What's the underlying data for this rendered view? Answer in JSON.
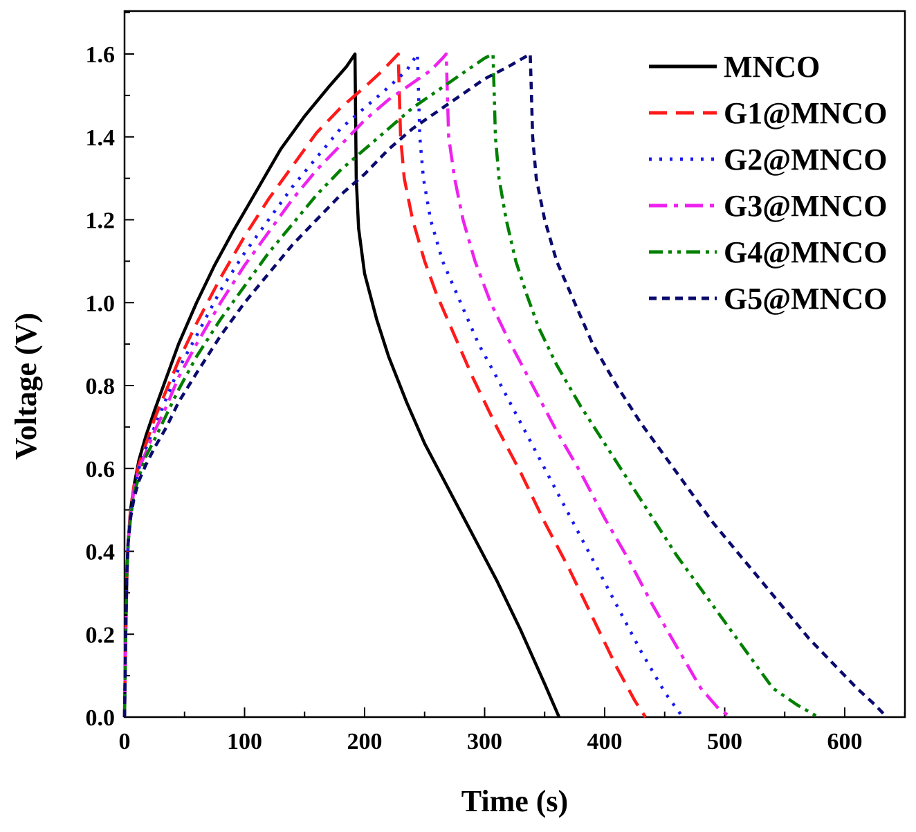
{
  "chart_data": {
    "type": "line",
    "title": "",
    "xlabel": "Time (s)",
    "ylabel": "Voltage (V)",
    "xlim": [
      0,
      650
    ],
    "ylim": [
      0,
      1.7
    ],
    "xticks": [
      0,
      100,
      200,
      300,
      400,
      500,
      600
    ],
    "xtick_labels": [
      "0",
      "100",
      "200",
      "300",
      "400",
      "500",
      "600"
    ],
    "yticks": [
      0.0,
      0.2,
      0.4,
      0.6,
      0.8,
      1.0,
      1.2,
      1.4,
      1.6
    ],
    "ytick_labels": [
      "0.0",
      "0.2",
      "0.4",
      "0.6",
      "0.8",
      "1.0",
      "1.2",
      "1.4",
      "1.6"
    ],
    "grid": false,
    "legend_position": "top-right",
    "series": [
      {
        "name": "MNCO",
        "color": "#000000",
        "style": "solid",
        "x": [
          0,
          1,
          2,
          3,
          5,
          8,
          12,
          18,
          25,
          35,
          45,
          60,
          75,
          90,
          110,
          130,
          150,
          170,
          185,
          192,
          192.5,
          193,
          195,
          200,
          210,
          220,
          235,
          250,
          270,
          290,
          310,
          330,
          350,
          362
        ],
        "y": [
          0,
          0.2,
          0.35,
          0.42,
          0.5,
          0.56,
          0.62,
          0.68,
          0.74,
          0.82,
          0.9,
          1.0,
          1.09,
          1.17,
          1.27,
          1.37,
          1.45,
          1.52,
          1.57,
          1.6,
          1.45,
          1.3,
          1.18,
          1.07,
          0.96,
          0.87,
          0.76,
          0.66,
          0.55,
          0.44,
          0.33,
          0.21,
          0.08,
          0
        ]
      },
      {
        "name": "G1@MNCO",
        "color": "#ff1a1a",
        "style": "dash",
        "x": [
          0,
          1,
          2,
          3,
          5,
          8,
          12,
          18,
          25,
          35,
          45,
          60,
          80,
          100,
          120,
          140,
          160,
          180,
          200,
          215,
          228,
          229,
          230,
          233,
          240,
          250,
          260,
          275,
          290,
          310,
          330,
          350,
          370,
          390,
          410,
          425,
          434
        ],
        "y": [
          0,
          0.2,
          0.35,
          0.42,
          0.5,
          0.56,
          0.61,
          0.66,
          0.72,
          0.79,
          0.86,
          0.95,
          1.06,
          1.16,
          1.25,
          1.33,
          1.41,
          1.47,
          1.52,
          1.56,
          1.6,
          1.5,
          1.4,
          1.3,
          1.2,
          1.1,
          1.02,
          0.92,
          0.82,
          0.7,
          0.59,
          0.47,
          0.36,
          0.24,
          0.12,
          0.04,
          0
        ]
      },
      {
        "name": "G2@MNCO",
        "color": "#1a1aee",
        "style": "dot",
        "x": [
          0,
          1,
          2,
          3,
          5,
          8,
          12,
          18,
          25,
          35,
          45,
          60,
          80,
          100,
          120,
          140,
          160,
          180,
          200,
          220,
          235,
          244,
          245,
          246,
          249,
          255,
          265,
          280,
          295,
          310,
          330,
          350,
          370,
          390,
          410,
          430,
          450,
          465
        ],
        "y": [
          0,
          0.2,
          0.35,
          0.42,
          0.49,
          0.55,
          0.6,
          0.65,
          0.7,
          0.77,
          0.84,
          0.92,
          1.03,
          1.12,
          1.2,
          1.28,
          1.35,
          1.42,
          1.47,
          1.52,
          1.56,
          1.6,
          1.5,
          1.4,
          1.3,
          1.2,
          1.1,
          1.0,
          0.9,
          0.82,
          0.71,
          0.6,
          0.49,
          0.38,
          0.27,
          0.16,
          0.06,
          0
        ]
      },
      {
        "name": "G3@MNCO",
        "color": "#ee22ee",
        "style": "dashdot",
        "x": [
          0,
          1,
          2,
          3,
          5,
          8,
          12,
          18,
          25,
          35,
          45,
          60,
          80,
          100,
          120,
          140,
          160,
          180,
          200,
          220,
          240,
          255,
          265,
          268,
          269,
          270,
          275,
          282,
          292,
          305,
          320,
          340,
          360,
          380,
          400,
          420,
          440,
          460,
          480,
          495,
          505
        ],
        "y": [
          0,
          0.2,
          0.35,
          0.42,
          0.49,
          0.55,
          0.6,
          0.64,
          0.69,
          0.75,
          0.82,
          0.9,
          1.0,
          1.09,
          1.17,
          1.25,
          1.32,
          1.38,
          1.44,
          1.49,
          1.53,
          1.56,
          1.59,
          1.6,
          1.5,
          1.4,
          1.3,
          1.2,
          1.1,
          1.0,
          0.91,
          0.8,
          0.69,
          0.59,
          0.48,
          0.38,
          0.27,
          0.17,
          0.07,
          0.02,
          0
        ]
      },
      {
        "name": "G4@MNCO",
        "color": "#008000",
        "style": "dashdotdot",
        "x": [
          0,
          1,
          2,
          3,
          5,
          8,
          12,
          18,
          25,
          35,
          45,
          60,
          80,
          100,
          120,
          140,
          160,
          180,
          200,
          220,
          240,
          260,
          280,
          300,
          307,
          308,
          309,
          312,
          318,
          326,
          335,
          345,
          360,
          380,
          400,
          420,
          440,
          460,
          480,
          500,
          520,
          540,
          560,
          578
        ],
        "y": [
          0,
          0.2,
          0.35,
          0.42,
          0.48,
          0.54,
          0.58,
          0.63,
          0.67,
          0.73,
          0.79,
          0.87,
          0.96,
          1.04,
          1.12,
          1.19,
          1.26,
          1.32,
          1.37,
          1.42,
          1.47,
          1.51,
          1.55,
          1.59,
          1.6,
          1.5,
          1.4,
          1.3,
          1.2,
          1.1,
          1.02,
          0.94,
          0.85,
          0.75,
          0.66,
          0.57,
          0.48,
          0.39,
          0.31,
          0.23,
          0.15,
          0.07,
          0.03,
          0
        ]
      },
      {
        "name": "G5@MNCO",
        "color": "#0a0a6e",
        "style": "shortdash",
        "x": [
          0,
          1,
          2,
          3,
          5,
          8,
          12,
          18,
          25,
          35,
          45,
          60,
          80,
          100,
          120,
          140,
          160,
          180,
          200,
          220,
          240,
          260,
          280,
          300,
          320,
          338,
          339,
          340,
          343,
          350,
          360,
          375,
          390,
          410,
          430,
          450,
          470,
          490,
          510,
          530,
          550,
          570,
          590,
          610,
          625,
          635
        ],
        "y": [
          0,
          0.2,
          0.35,
          0.42,
          0.48,
          0.53,
          0.57,
          0.61,
          0.65,
          0.7,
          0.76,
          0.83,
          0.92,
          1.0,
          1.07,
          1.14,
          1.2,
          1.26,
          1.31,
          1.37,
          1.42,
          1.46,
          1.5,
          1.54,
          1.57,
          1.6,
          1.5,
          1.4,
          1.3,
          1.2,
          1.1,
          1.0,
          0.9,
          0.8,
          0.71,
          0.63,
          0.55,
          0.47,
          0.4,
          0.33,
          0.26,
          0.19,
          0.13,
          0.07,
          0.03,
          0
        ]
      }
    ]
  }
}
